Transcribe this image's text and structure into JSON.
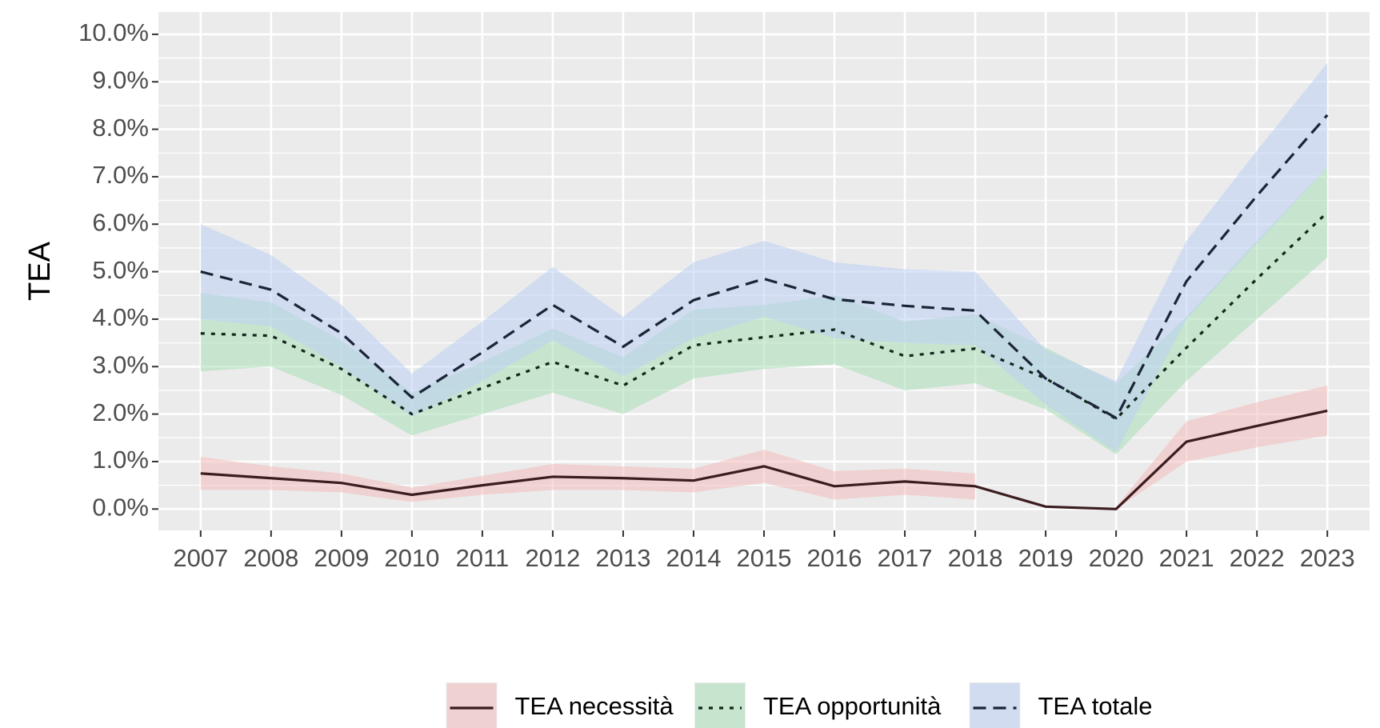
{
  "chart_data": {
    "type": "line",
    "y_label": "TEA",
    "categories": [
      "2007",
      "2008",
      "2009",
      "2010",
      "2011",
      "2012",
      "2013",
      "2014",
      "2015",
      "2016",
      "2017",
      "2018",
      "2019",
      "2020",
      "2021",
      "2022",
      "2023"
    ],
    "ylim": [
      -0.45,
      10.47
    ],
    "yticks": [
      {
        "value": 0,
        "label": "0.0%"
      },
      {
        "value": 1,
        "label": "1.0%"
      },
      {
        "value": 2,
        "label": "2.0%"
      },
      {
        "value": 3,
        "label": "3.0%"
      },
      {
        "value": 4,
        "label": "4.0%"
      },
      {
        "value": 5,
        "label": "5.0%"
      },
      {
        "value": 6,
        "label": "6.0%"
      },
      {
        "value": 7,
        "label": "7.0%"
      },
      {
        "value": 8,
        "label": "8.0%"
      },
      {
        "value": 9,
        "label": "9.0%"
      },
      {
        "value": 10,
        "label": "10.0%"
      }
    ],
    "grid": true,
    "legend": "bottom",
    "series": [
      {
        "name": "TEA necessità",
        "color": "#3b1c1f",
        "fill": "#f4bcbc",
        "dash": "solid",
        "values": [
          0.75,
          0.65,
          0.55,
          0.3,
          0.5,
          0.68,
          0.65,
          0.6,
          0.9,
          0.48,
          0.58,
          0.48,
          0.05,
          0.0,
          1.42,
          1.75,
          2.07
        ],
        "lower": [
          0.4,
          0.4,
          0.35,
          0.15,
          0.3,
          0.4,
          0.4,
          0.35,
          0.55,
          0.2,
          0.3,
          0.2,
          null,
          0.0,
          1.0,
          1.3,
          1.55
        ],
        "upper": [
          1.1,
          0.9,
          0.75,
          0.45,
          0.7,
          0.95,
          0.9,
          0.85,
          1.25,
          0.8,
          0.85,
          0.75,
          null,
          0.05,
          1.85,
          2.25,
          2.6
        ]
      },
      {
        "name": "TEA opportunità",
        "color": "#13261c",
        "fill": "#a8dfb6",
        "dash": "dotted",
        "values": [
          3.7,
          3.65,
          2.95,
          2.0,
          2.55,
          3.1,
          2.6,
          3.45,
          3.62,
          3.78,
          3.22,
          3.38,
          2.75,
          1.9,
          3.4,
          4.85,
          6.25
        ],
        "lower": [
          2.9,
          3.0,
          2.4,
          1.55,
          2.0,
          2.45,
          2.0,
          2.75,
          2.95,
          3.05,
          2.5,
          2.65,
          2.1,
          1.15,
          2.7,
          4.0,
          5.3
        ],
        "upper": [
          4.55,
          4.35,
          3.55,
          2.45,
          3.1,
          3.8,
          3.2,
          4.2,
          4.3,
          4.5,
          3.95,
          4.1,
          3.4,
          2.65,
          4.05,
          5.65,
          7.2
        ]
      },
      {
        "name": "TEA totale",
        "color": "#1b2538",
        "fill": "#bcd0f4",
        "dash": "dashed",
        "values": [
          5.0,
          4.62,
          3.7,
          2.35,
          3.3,
          4.3,
          3.42,
          4.4,
          4.85,
          4.42,
          4.28,
          4.18,
          2.75,
          1.92,
          4.8,
          6.6,
          8.3
        ],
        "lower": [
          4.0,
          3.85,
          3.0,
          1.95,
          2.7,
          3.55,
          2.8,
          3.6,
          4.05,
          3.6,
          3.5,
          3.45,
          2.2,
          1.2,
          4.0,
          5.6,
          7.2
        ],
        "upper": [
          6.0,
          5.35,
          4.3,
          2.85,
          3.95,
          5.1,
          4.05,
          5.2,
          5.65,
          5.2,
          5.05,
          5.0,
          3.35,
          2.7,
          5.65,
          7.55,
          9.4
        ]
      }
    ]
  }
}
